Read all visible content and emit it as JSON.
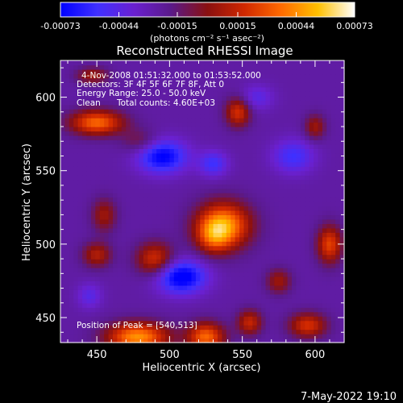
{
  "chart_data": {
    "type": "heatmap",
    "title": "Reconstructed RHESSI Image",
    "xlabel": "Heliocentric X (arcsec)",
    "ylabel": "Heliocentric Y (arcsec)",
    "xlim": [
      425,
      620
    ],
    "ylim": [
      433,
      625
    ],
    "x_ticks": [
      450,
      500,
      550,
      600
    ],
    "y_ticks": [
      450,
      500,
      550,
      600
    ],
    "x_tick_labels": [
      "450",
      "500",
      "550",
      "600"
    ],
    "y_tick_labels": [
      "450",
      "500",
      "550",
      "600"
    ],
    "colorbar": {
      "range": [
        -0.00073,
        0.00073
      ],
      "tick_values": [
        -0.00073,
        -0.00044,
        -0.00015,
        0.00015,
        0.00044,
        0.00073
      ],
      "tick_labels": [
        "-0.00073",
        "-0.00044",
        "-0.00015",
        "0.00015",
        "0.00044",
        "0.00073"
      ],
      "unit_label": "(photons cm⁻² s⁻¹ asec⁻²)",
      "colors": [
        "#0000ff",
        "#4030ff",
        "#6a20d0",
        "#5a1a8a",
        "#8a1010",
        "#d02800",
        "#ff6a00",
        "#ffc000",
        "#ffffff"
      ]
    },
    "grid": false,
    "sources": [
      {
        "x": 537,
        "y": 513,
        "amp": 0.00073,
        "sigma_x": 13,
        "sigma_y": 11
      },
      {
        "x": 530,
        "y": 505,
        "amp": 0.0003,
        "sigma_x": 8,
        "sigma_y": 8
      },
      {
        "x": 450,
        "y": 583,
        "amp": 0.0006,
        "sigma_x": 13,
        "sigma_y": 6
      },
      {
        "x": 480,
        "y": 570,
        "amp": 0.0002,
        "sigma_x": 9,
        "sigma_y": 6
      },
      {
        "x": 547,
        "y": 590,
        "amp": 0.00045,
        "sigma_x": 6,
        "sigma_y": 7
      },
      {
        "x": 455,
        "y": 520,
        "amp": 0.0003,
        "sigma_x": 6,
        "sigma_y": 8
      },
      {
        "x": 490,
        "y": 490,
        "amp": 0.00045,
        "sigma_x": 9,
        "sigma_y": 8
      },
      {
        "x": 450,
        "y": 493,
        "amp": 0.00035,
        "sigma_x": 7,
        "sigma_y": 6
      },
      {
        "x": 610,
        "y": 500,
        "amp": 0.0005,
        "sigma_x": 6,
        "sigma_y": 9
      },
      {
        "x": 600,
        "y": 580,
        "amp": 0.0003,
        "sigma_x": 5,
        "sigma_y": 6
      },
      {
        "x": 478,
        "y": 437,
        "amp": 0.0007,
        "sigma_x": 15,
        "sigma_y": 7
      },
      {
        "x": 525,
        "y": 437,
        "amp": 0.0006,
        "sigma_x": 9,
        "sigma_y": 7
      },
      {
        "x": 555,
        "y": 447,
        "amp": 0.0004,
        "sigma_x": 6,
        "sigma_y": 6
      },
      {
        "x": 595,
        "y": 445,
        "amp": 0.00045,
        "sigma_x": 9,
        "sigma_y": 6
      },
      {
        "x": 575,
        "y": 475,
        "amp": 0.0003,
        "sigma_x": 6,
        "sigma_y": 6
      },
      {
        "x": 447,
        "y": 615,
        "amp": 0.0003,
        "sigma_x": 8,
        "sigma_y": 4
      },
      {
        "x": 495,
        "y": 560,
        "amp": -0.0005,
        "sigma_x": 12,
        "sigma_y": 8
      },
      {
        "x": 508,
        "y": 478,
        "amp": -0.00055,
        "sigma_x": 12,
        "sigma_y": 8
      },
      {
        "x": 530,
        "y": 555,
        "amp": -0.0003,
        "sigma_x": 7,
        "sigma_y": 6
      },
      {
        "x": 585,
        "y": 560,
        "amp": -0.0003,
        "sigma_x": 10,
        "sigma_y": 8
      },
      {
        "x": 560,
        "y": 600,
        "amp": -0.0002,
        "sigma_x": 8,
        "sigma_y": 6
      },
      {
        "x": 445,
        "y": 465,
        "amp": -0.0002,
        "sigma_x": 6,
        "sigma_y": 6
      }
    ],
    "background": -0.00025,
    "annotations": {
      "time_range": "4-Nov-2008 01:51:32.000 to 01:53:52.000",
      "detectors": "Detectors: 3F 4F 5F 6F 7F 8F, Att 0",
      "energy_range": "Energy Range: 25.0 - 50.0 keV",
      "method": "Clean",
      "total_counts": "Total counts: 4.60E+03",
      "peak_position": "Position of Peak = [540,513]"
    }
  },
  "footer": {
    "date": "7-May-2022 19:10"
  }
}
